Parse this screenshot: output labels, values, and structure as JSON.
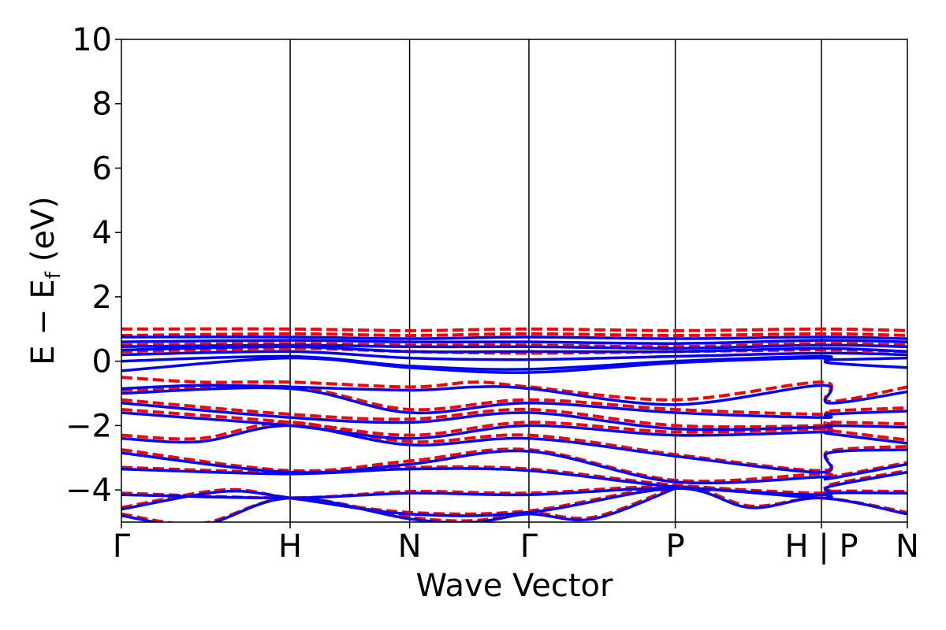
{
  "chart_data": {
    "type": "line",
    "xlabel": "Wave Vector",
    "ylabel_main": "E − E",
    "ylabel_sub": "f",
    "ylabel_unit": " (eV)",
    "ylim": [
      -5,
      10
    ],
    "yticks": [
      10,
      8,
      6,
      4,
      2,
      0,
      -2,
      -4
    ],
    "ytick_labels": [
      "10",
      "8",
      "6",
      "4",
      "2",
      "0",
      "−2",
      "−4"
    ],
    "xlim": [
      0,
      1
    ],
    "kpoints": [
      {
        "label": "Γ",
        "x": 0.0
      },
      {
        "label": "H",
        "x": 0.2147
      },
      {
        "label": "N",
        "x": 0.3667
      },
      {
        "label": "Γ",
        "x": 0.5185
      },
      {
        "label": "P",
        "x": 0.7047
      },
      {
        "label": "H | P",
        "x": 0.8907
      },
      {
        "label": "N",
        "x": 1.0
      }
    ],
    "grid": false,
    "series": [
      {
        "style": "dashed",
        "color": "#ff0000",
        "bands": [
          [
            [
              0,
              1.0
            ],
            [
              0.2147,
              1.0
            ],
            [
              0.3667,
              0.95
            ],
            [
              0.5185,
              1.0
            ],
            [
              0.7047,
              0.95
            ],
            [
              0.8907,
              1.0
            ],
            [
              1.0,
              0.95
            ]
          ],
          [
            [
              0,
              0.8
            ],
            [
              0.2147,
              0.85
            ],
            [
              0.3667,
              0.8
            ],
            [
              0.5185,
              0.85
            ],
            [
              0.7047,
              0.8
            ],
            [
              0.8907,
              0.85
            ],
            [
              1.0,
              0.8
            ]
          ],
          [
            [
              0,
              0.5
            ],
            [
              0.2147,
              0.55
            ],
            [
              0.3667,
              0.5
            ],
            [
              0.5185,
              0.5
            ],
            [
              0.7047,
              0.45
            ],
            [
              0.8907,
              0.55
            ],
            [
              1.0,
              0.5
            ]
          ],
          [
            [
              0,
              0.3
            ],
            [
              0.2147,
              0.4
            ],
            [
              0.3667,
              0.3
            ],
            [
              0.5185,
              0.25
            ],
            [
              0.7047,
              0.3
            ],
            [
              0.8907,
              0.35
            ],
            [
              1.0,
              0.3
            ]
          ],
          [
            [
              0,
              -0.5
            ],
            [
              0.1,
              -0.65
            ],
            [
              0.2147,
              -0.65
            ],
            [
              0.3667,
              -0.8
            ],
            [
              0.45,
              -0.65
            ],
            [
              0.5185,
              -0.8
            ],
            [
              0.7047,
              -1.2
            ],
            [
              0.8907,
              -0.65
            ],
            [
              0.9,
              -1.25
            ],
            [
              1.0,
              -0.8
            ]
          ],
          [
            [
              0,
              -0.9
            ],
            [
              0.2147,
              -0.8
            ],
            [
              0.3667,
              -1.5
            ],
            [
              0.5185,
              -1.2
            ],
            [
              0.7047,
              -1.5
            ],
            [
              0.8907,
              -1.65
            ],
            [
              0.9,
              -1.55
            ],
            [
              1.0,
              -1.45
            ]
          ],
          [
            [
              0,
              -1.2
            ],
            [
              0.2147,
              -1.65
            ],
            [
              0.3667,
              -1.8
            ],
            [
              0.5185,
              -1.5
            ],
            [
              0.7047,
              -2.0
            ],
            [
              0.8907,
              -2.0
            ],
            [
              0.9,
              -1.9
            ],
            [
              1.0,
              -1.95
            ]
          ],
          [
            [
              0,
              -1.5
            ],
            [
              0.2147,
              -1.9
            ],
            [
              0.3667,
              -2.3
            ],
            [
              0.5185,
              -1.9
            ],
            [
              0.7047,
              -2.2
            ],
            [
              0.8907,
              -2.1
            ],
            [
              0.9,
              -2.15
            ],
            [
              1.0,
              -2.45
            ]
          ],
          [
            [
              0,
              -2.3
            ],
            [
              0.1,
              -2.4
            ],
            [
              0.2147,
              -1.9
            ],
            [
              0.3667,
              -2.5
            ],
            [
              0.5185,
              -2.3
            ],
            [
              0.7047,
              -2.9
            ],
            [
              0.8907,
              -3.4
            ],
            [
              0.9,
              -2.8
            ],
            [
              1.0,
              -2.65
            ]
          ],
          [
            [
              0,
              -2.75
            ],
            [
              0.2147,
              -3.4
            ],
            [
              0.3667,
              -3.1
            ],
            [
              0.5185,
              -2.75
            ],
            [
              0.7047,
              -3.7
            ],
            [
              0.8907,
              -3.5
            ],
            [
              0.9,
              -3.6
            ],
            [
              1.0,
              -3.15
            ]
          ],
          [
            [
              0,
              -3.3
            ],
            [
              0.2147,
              -3.45
            ],
            [
              0.3667,
              -3.3
            ],
            [
              0.5185,
              -3.35
            ],
            [
              0.7047,
              -3.85
            ],
            [
              0.8907,
              -4.1
            ],
            [
              0.9,
              -3.85
            ],
            [
              1.0,
              -3.4
            ]
          ],
          [
            [
              0,
              -4.1
            ],
            [
              0.2147,
              -4.25
            ],
            [
              0.3667,
              -4.05
            ],
            [
              0.5185,
              -4.1
            ],
            [
              0.7047,
              -3.9
            ],
            [
              0.8907,
              -4.25
            ],
            [
              0.9,
              -4.05
            ],
            [
              1.0,
              -4.05
            ]
          ],
          [
            [
              0,
              -4.55
            ],
            [
              0.13,
              -4.0
            ],
            [
              0.2147,
              -4.25
            ],
            [
              0.3667,
              -4.7
            ],
            [
              0.5185,
              -4.65
            ],
            [
              0.7047,
              -3.9
            ],
            [
              0.8,
              -4.5
            ],
            [
              0.8907,
              -4.25
            ],
            [
              1.0,
              -4.7
            ]
          ],
          [
            [
              0,
              -4.75
            ],
            [
              0.1,
              -5.05
            ],
            [
              0.2147,
              -4.25
            ],
            [
              0.3667,
              -4.85
            ],
            [
              0.45,
              -4.95
            ],
            [
              0.5185,
              -4.7
            ],
            [
              0.6,
              -4.85
            ],
            [
              0.7047,
              -3.9
            ]
          ]
        ]
      },
      {
        "style": "solid",
        "color": "#0000ff",
        "bands": [
          [
            [
              0,
              0.75
            ],
            [
              0.2147,
              0.75
            ],
            [
              0.3667,
              0.7
            ],
            [
              0.5185,
              0.75
            ],
            [
              0.7047,
              0.7
            ],
            [
              0.8907,
              0.75
            ],
            [
              1.0,
              0.7
            ]
          ],
          [
            [
              0,
              0.6
            ],
            [
              0.2147,
              0.65
            ],
            [
              0.3667,
              0.6
            ],
            [
              0.5185,
              0.6
            ],
            [
              0.7047,
              0.55
            ],
            [
              0.8907,
              0.65
            ],
            [
              1.0,
              0.6
            ]
          ],
          [
            [
              0,
              0.45
            ],
            [
              0.2147,
              0.5
            ],
            [
              0.3667,
              0.45
            ],
            [
              0.5185,
              0.45
            ],
            [
              0.7047,
              0.4
            ],
            [
              0.8907,
              0.5
            ],
            [
              1.0,
              0.45
            ]
          ],
          [
            [
              0,
              0.35
            ],
            [
              0.2147,
              0.45
            ],
            [
              0.3667,
              0.3
            ],
            [
              0.5185,
              0.3
            ],
            [
              0.7047,
              0.3
            ],
            [
              0.8907,
              0.4
            ],
            [
              1.0,
              0.3
            ]
          ],
          [
            [
              0,
              0.2
            ],
            [
              0.2147,
              0.3
            ],
            [
              0.3667,
              0.1
            ],
            [
              0.5185,
              0.05
            ],
            [
              0.7047,
              0.15
            ],
            [
              0.8907,
              0.25
            ],
            [
              1.0,
              0.2
            ]
          ],
          [
            [
              0,
              0.0
            ],
            [
              0.2147,
              0.15
            ],
            [
              0.3667,
              -0.15
            ],
            [
              0.5185,
              -0.25
            ],
            [
              0.7047,
              0.0
            ],
            [
              0.8907,
              0.15
            ],
            [
              0.9,
              0.05
            ],
            [
              1.0,
              0.1
            ]
          ],
          [
            [
              0,
              -0.3
            ],
            [
              0.2147,
              0.1
            ],
            [
              0.3667,
              -0.2
            ],
            [
              0.5185,
              -0.35
            ],
            [
              0.7047,
              -0.05
            ],
            [
              0.8907,
              0.1
            ],
            [
              0.9,
              -0.05
            ],
            [
              1.0,
              -0.2
            ]
          ],
          [
            [
              0,
              -0.85
            ],
            [
              0.1,
              -0.75
            ],
            [
              0.2147,
              -0.8
            ],
            [
              0.3667,
              -0.9
            ],
            [
              0.45,
              -0.8
            ],
            [
              0.5185,
              -0.85
            ],
            [
              0.7047,
              -1.35
            ],
            [
              0.8907,
              -0.75
            ],
            [
              0.9,
              -1.3
            ],
            [
              1.0,
              -0.95
            ]
          ],
          [
            [
              0,
              -1.0
            ],
            [
              0.2147,
              -0.85
            ],
            [
              0.3667,
              -1.6
            ],
            [
              0.5185,
              -1.3
            ],
            [
              0.7047,
              -1.6
            ],
            [
              0.8907,
              -1.75
            ],
            [
              0.9,
              -1.65
            ],
            [
              1.0,
              -1.55
            ]
          ],
          [
            [
              0,
              -1.3
            ],
            [
              0.2147,
              -1.75
            ],
            [
              0.3667,
              -1.9
            ],
            [
              0.5185,
              -1.6
            ],
            [
              0.7047,
              -2.1
            ],
            [
              0.8907,
              -2.05
            ],
            [
              0.9,
              -2.0
            ],
            [
              1.0,
              -2.05
            ]
          ],
          [
            [
              0,
              -1.6
            ],
            [
              0.2147,
              -2.0
            ],
            [
              0.3667,
              -2.4
            ],
            [
              0.5185,
              -2.0
            ],
            [
              0.7047,
              -2.3
            ],
            [
              0.8907,
              -2.2
            ],
            [
              0.9,
              -2.25
            ],
            [
              1.0,
              -2.55
            ]
          ],
          [
            [
              0,
              -2.4
            ],
            [
              0.1,
              -2.5
            ],
            [
              0.2147,
              -2.0
            ],
            [
              0.3667,
              -2.6
            ],
            [
              0.5185,
              -2.4
            ],
            [
              0.7047,
              -2.95
            ],
            [
              0.8907,
              -3.45
            ],
            [
              0.9,
              -2.85
            ],
            [
              1.0,
              -2.75
            ]
          ],
          [
            [
              0,
              -2.85
            ],
            [
              0.2147,
              -3.45
            ],
            [
              0.3667,
              -3.2
            ],
            [
              0.5185,
              -2.8
            ],
            [
              0.7047,
              -3.75
            ],
            [
              0.8907,
              -3.6
            ],
            [
              0.9,
              -3.65
            ],
            [
              1.0,
              -3.2
            ]
          ],
          [
            [
              0,
              -3.35
            ],
            [
              0.2147,
              -3.5
            ],
            [
              0.3667,
              -3.35
            ],
            [
              0.5185,
              -3.4
            ],
            [
              0.7047,
              -3.9
            ],
            [
              0.8907,
              -4.15
            ],
            [
              0.9,
              -3.9
            ],
            [
              1.0,
              -3.45
            ]
          ],
          [
            [
              0,
              -4.15
            ],
            [
              0.2147,
              -4.25
            ],
            [
              0.3667,
              -4.1
            ],
            [
              0.5185,
              -4.15
            ],
            [
              0.7047,
              -3.95
            ],
            [
              0.8907,
              -4.25
            ],
            [
              0.9,
              -4.1
            ],
            [
              1.0,
              -4.1
            ]
          ],
          [
            [
              0,
              -4.6
            ],
            [
              0.13,
              -4.05
            ],
            [
              0.2147,
              -4.25
            ],
            [
              0.3667,
              -4.75
            ],
            [
              0.5185,
              -4.7
            ],
            [
              0.7047,
              -3.95
            ],
            [
              0.8,
              -4.55
            ],
            [
              0.8907,
              -4.25
            ],
            [
              1.0,
              -4.75
            ]
          ],
          [
            [
              0,
              -4.8
            ],
            [
              0.1,
              -5.1
            ],
            [
              0.2147,
              -4.25
            ],
            [
              0.3667,
              -4.9
            ],
            [
              0.45,
              -5.0
            ],
            [
              0.5185,
              -4.75
            ],
            [
              0.6,
              -4.9
            ],
            [
              0.7047,
              -3.95
            ]
          ]
        ]
      }
    ]
  }
}
